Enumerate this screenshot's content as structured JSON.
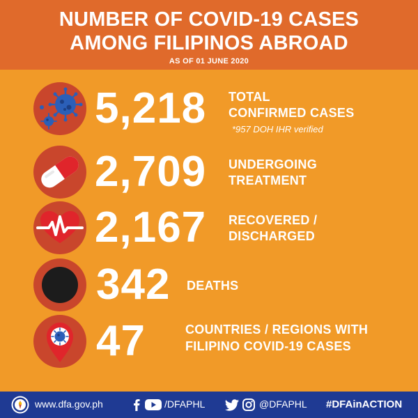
{
  "header": {
    "title_line1": "NUMBER OF COVID-19 CASES",
    "title_line2": "AMONG FILIPINOS ABROAD",
    "subtitle": "AS OF 01 JUNE 2020",
    "background_color": "#e06a2b"
  },
  "page": {
    "background_color": "#f19a28"
  },
  "stats": [
    {
      "icon": "virus-icon",
      "number": "5,218",
      "label_line1": "TOTAL",
      "label_line2": "CONFIRMED CASES",
      "note": "*957 DOH IHR verified"
    },
    {
      "icon": "pill-icon",
      "number": "2,709",
      "label_line1": "UNDERGOING",
      "label_line2": "TREATMENT"
    },
    {
      "icon": "heartbeat-icon",
      "number": "2,167",
      "label_line1": "RECOVERED /",
      "label_line2": "DISCHARGED"
    },
    {
      "icon": "black-circle-icon",
      "number": "342",
      "label_line1": "DEATHS"
    },
    {
      "icon": "location-pin-virus-icon",
      "number": "47",
      "label_line1": "COUNTRIES / REGIONS WITH",
      "label_line2": "FILIPINO COVID-19 CASES"
    }
  ],
  "footer": {
    "website": "www.dfa.gov.ph",
    "facebook_youtube_handle": "/DFAPHL",
    "twitter_instagram_handle": "@DFAPHL",
    "hashtag": "#DFAinACTION",
    "background_color": "#1f3a93"
  }
}
